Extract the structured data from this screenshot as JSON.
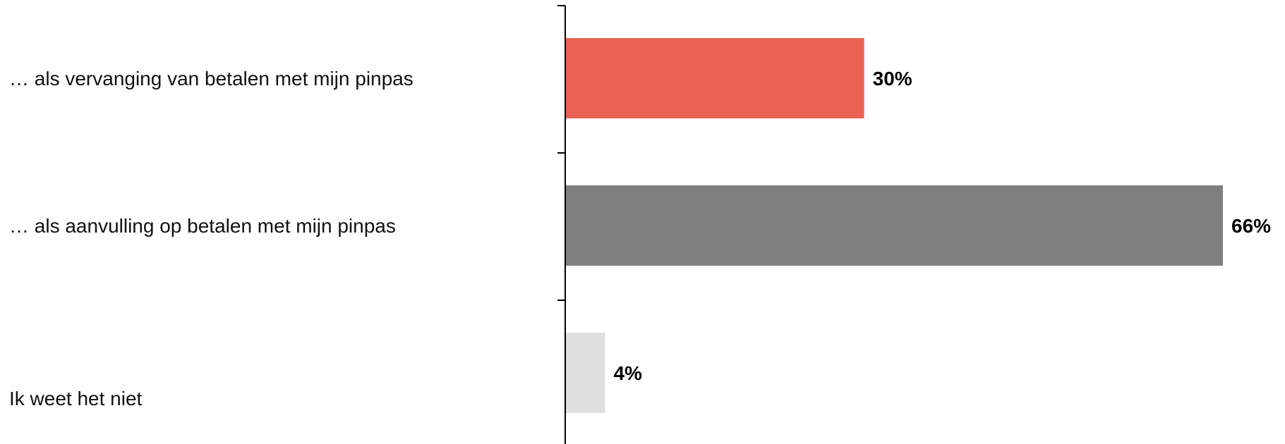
{
  "chart_data": {
    "type": "bar",
    "orientation": "horizontal",
    "categories": [
      "… als vervanging van betalen met mijn pinpas",
      "… als aanvulling op betalen met mijn pinpas",
      "Ik weet het niet"
    ],
    "values": [
      30,
      66,
      4
    ],
    "value_labels": [
      "30%",
      "66%",
      "4%"
    ],
    "bar_colors": [
      "#EA6253",
      "#7F7F7F",
      "#DFDFDF"
    ],
    "xlim": [
      0,
      66
    ],
    "grid": false,
    "legend": "none",
    "title": "",
    "xlabel": "",
    "ylabel": ""
  }
}
